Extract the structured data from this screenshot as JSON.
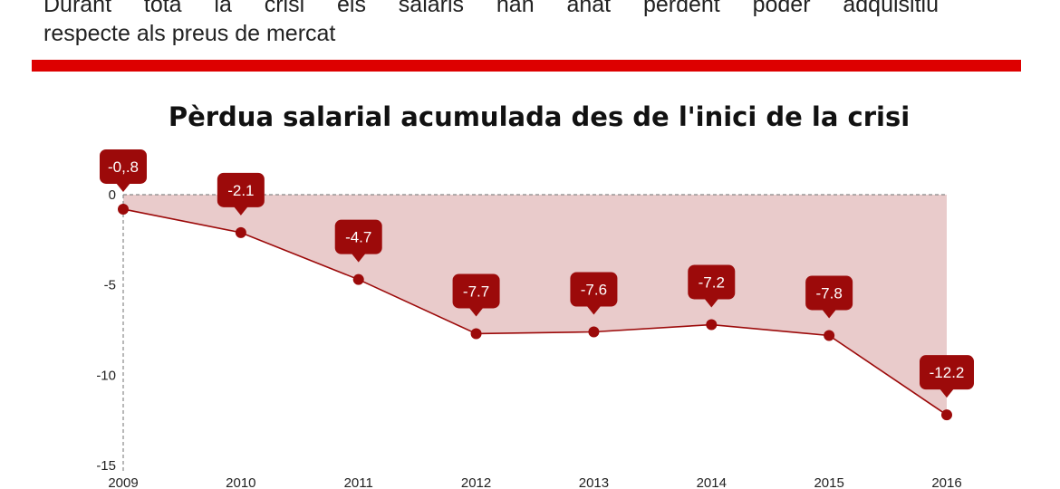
{
  "intro": {
    "line1": "Durant tota la crisi els salaris han anat perdent poder adquisitiu",
    "line2": "respecte als preus de mercat"
  },
  "colors": {
    "accent": "#dd0000",
    "series": "#9c0a0a",
    "area_fill": "#e9cbcb"
  },
  "chart_data": {
    "type": "area",
    "title": "Pèrdua salarial acumulada des de l'inici de la crisi",
    "xlabel": "",
    "ylabel": "",
    "x": [
      "2009",
      "2010",
      "2011",
      "2012",
      "2013",
      "2014",
      "2015",
      "2016"
    ],
    "series": [
      {
        "values": [
          -0.8,
          -2.1,
          -4.7,
          -7.7,
          -7.6,
          -7.2,
          -7.8,
          -12.2
        ]
      }
    ],
    "data_labels": [
      "-0,.8",
      "-2.1",
      "-4.7",
      "-7.7",
      "-7.6",
      "-7.2",
      "-7.8",
      "-12.2"
    ],
    "ylim": [
      -15,
      0
    ],
    "yticks": [
      0,
      -5,
      -10,
      -15
    ],
    "ytick_labels": [
      "0",
      "-5",
      "-10",
      "-15"
    ],
    "baseline": 0,
    "grid": false
  }
}
